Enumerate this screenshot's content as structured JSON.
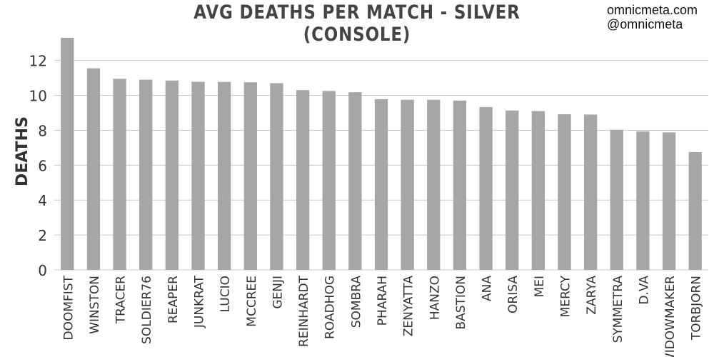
{
  "credits": [
    "omnicmeta.com",
    "@omnicmeta"
  ],
  "chart_data": {
    "type": "bar",
    "title": "AVG DEATHS PER MATCH - SILVER (CONSOLE)",
    "xlabel": "",
    "ylabel": "DEATHS",
    "ylim": [
      0,
      13.5
    ],
    "yticks": [
      0,
      2,
      4,
      6,
      8,
      10,
      12
    ],
    "grid": true,
    "categories": [
      "DOOMFIST",
      "WINSTON",
      "TRACER",
      "SOLDIER76",
      "REAPER",
      "JUNKRAT",
      "LUCIO",
      "MCCREE",
      "GENJI",
      "REINHARDT",
      "ROADHOG",
      "SOMBRA",
      "PHARAH",
      "ZENYATTA",
      "HANZO",
      "BASTION",
      "ANA",
      "ORISA",
      "MEI",
      "MERCY",
      "ZARYA",
      "SYMMETRA",
      "D.VA",
      "WIDOWMAKER",
      "TORBJORN"
    ],
    "values": [
      13.3,
      11.55,
      10.95,
      10.9,
      10.85,
      10.78,
      10.77,
      10.75,
      10.7,
      10.3,
      10.25,
      10.18,
      9.78,
      9.75,
      9.75,
      9.7,
      9.33,
      9.13,
      9.1,
      8.92,
      8.9,
      8.03,
      7.93,
      7.88,
      6.75
    ],
    "bar_color": "#a6a6a6",
    "grid_color": "#c8c8c8",
    "text_color": "#333333"
  }
}
